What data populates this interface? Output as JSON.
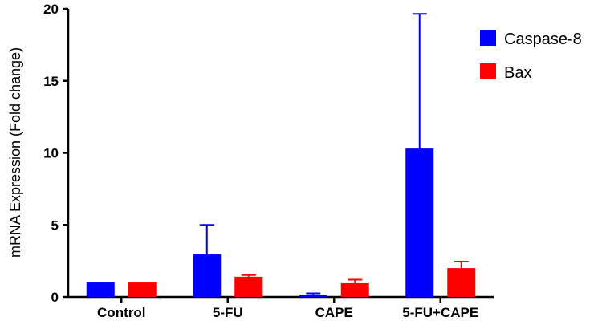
{
  "chart_data": {
    "type": "bar",
    "categories": [
      "Control",
      "5-FU",
      "CAPE",
      "5-FU+CAPE"
    ],
    "series": [
      {
        "name": "Caspase-8",
        "color": "#0000ff",
        "values": [
          1.0,
          2.95,
          0.15,
          10.3
        ],
        "error": [
          0,
          2.05,
          0.1,
          9.35
        ]
      },
      {
        "name": "Bax",
        "color": "#ff0000",
        "values": [
          1.0,
          1.4,
          0.95,
          2.0
        ],
        "error": [
          0,
          0.12,
          0.25,
          0.45
        ]
      }
    ],
    "xlabel": "",
    "ylabel": "mRNA Expression (Fold change)",
    "ylim": [
      0,
      20
    ],
    "yticks": [
      "0",
      "5",
      "10",
      "15",
      "20"
    ],
    "grid": false,
    "legend_position": "top-right"
  }
}
